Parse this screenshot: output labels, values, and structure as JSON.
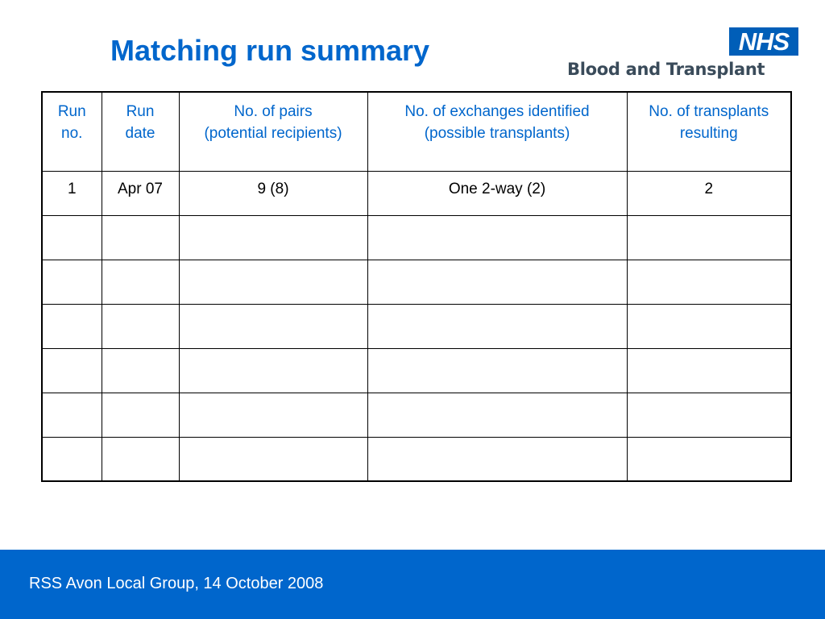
{
  "slide": {
    "title": "Matching run summary",
    "footer": "RSS Avon Local Group, 14 October 2008"
  },
  "logo": {
    "badge": "NHS",
    "org": "Blood and Transplant"
  },
  "table": {
    "headers": [
      [
        "Run",
        "no."
      ],
      [
        "Run",
        "date"
      ],
      [
        "No. of pairs",
        "(potential recipients)"
      ],
      [
        "No. of exchanges identified",
        "(possible transplants)"
      ],
      [
        "No. of transplants",
        "resulting"
      ]
    ],
    "rows": [
      [
        "1",
        "Apr 07",
        "9 (8)",
        "One 2-way (2)",
        "2"
      ],
      [
        "",
        "",
        "",
        "",
        ""
      ],
      [
        "",
        "",
        "",
        "",
        ""
      ],
      [
        "",
        "",
        "",
        "",
        ""
      ],
      [
        "",
        "",
        "",
        "",
        ""
      ],
      [
        "",
        "",
        "",
        "",
        ""
      ],
      [
        "",
        "",
        "",
        "",
        ""
      ]
    ]
  },
  "colors": {
    "title": "#0066cc",
    "header_text": "#0066cc",
    "footer_bg": "#0066cc",
    "nhs_blue": "#005eb8"
  }
}
